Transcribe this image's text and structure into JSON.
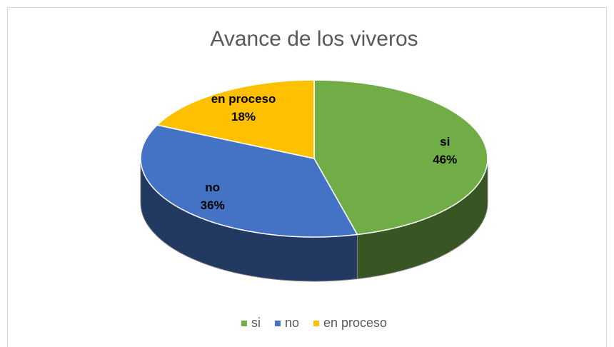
{
  "chart_data": {
    "type": "pie",
    "title": "Avance de los viveros",
    "categories": [
      "si",
      "no",
      "en proceso"
    ],
    "values": [
      46,
      36,
      18
    ],
    "value_labels": [
      "46%",
      "36%",
      "18%"
    ],
    "colors": [
      "#70ad47",
      "#4472c4",
      "#ffc000"
    ],
    "legend": "bottom"
  }
}
